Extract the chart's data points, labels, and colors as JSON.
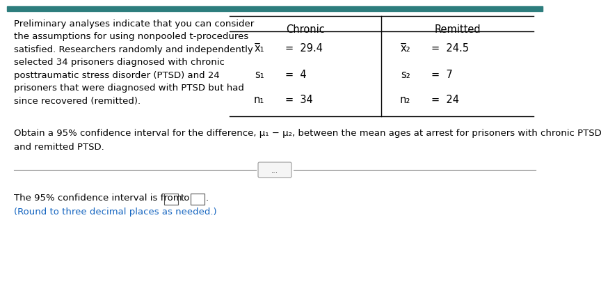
{
  "bg_color": "#ffffff",
  "top_bar_color": "#2d7d7d",
  "left_text_lines": [
    "Preliminary analyses indicate that you can consider",
    "the assumptions for using nonpooled t-procedures",
    "satisfied. Researchers randomly and independently",
    "selected 34 prisoners diagnosed with chronic",
    "posttraumatic stress disorder (PTSD) and 24",
    "prisoners that were diagnosed with PTSD but had",
    "since recovered (remitted)."
  ],
  "table_header_chronic": "Chronic",
  "table_header_remitted": "Remitted",
  "chronic_x_label": "x̅₁",
  "chronic_x_val": "=  29.4",
  "chronic_s_label": "s₁",
  "chronic_s_val": "=  4",
  "chronic_n_label": "n₁",
  "chronic_n_val": "=  34",
  "remitted_x_label": "x̅₂",
  "remitted_x_val": "=  24.5",
  "remitted_s_label": "s₂",
  "remitted_s_val": "=  7",
  "remitted_n_label": "n₂",
  "remitted_n_val": "=  24",
  "main_question_line1": "Obtain a 95% confidence interval for the difference, μ₁ − μ₂, between the mean ages at arrest for prisoners with chronic PTSD",
  "main_question_line2": "and remitted PTSD.",
  "bottom_text_black": "The 95% confidence interval is from ",
  "to_text": "to",
  "period_text": ".",
  "bottom_text_blue": "(Round to three decimal places as needed.)",
  "separator_dots": "...",
  "font_size_main": 9.5,
  "font_size_table": 10.5,
  "font_size_small": 7.5,
  "text_color": "#000000",
  "blue_color": "#1565c0",
  "line_color": "#888888",
  "table_line_color": "#000000"
}
